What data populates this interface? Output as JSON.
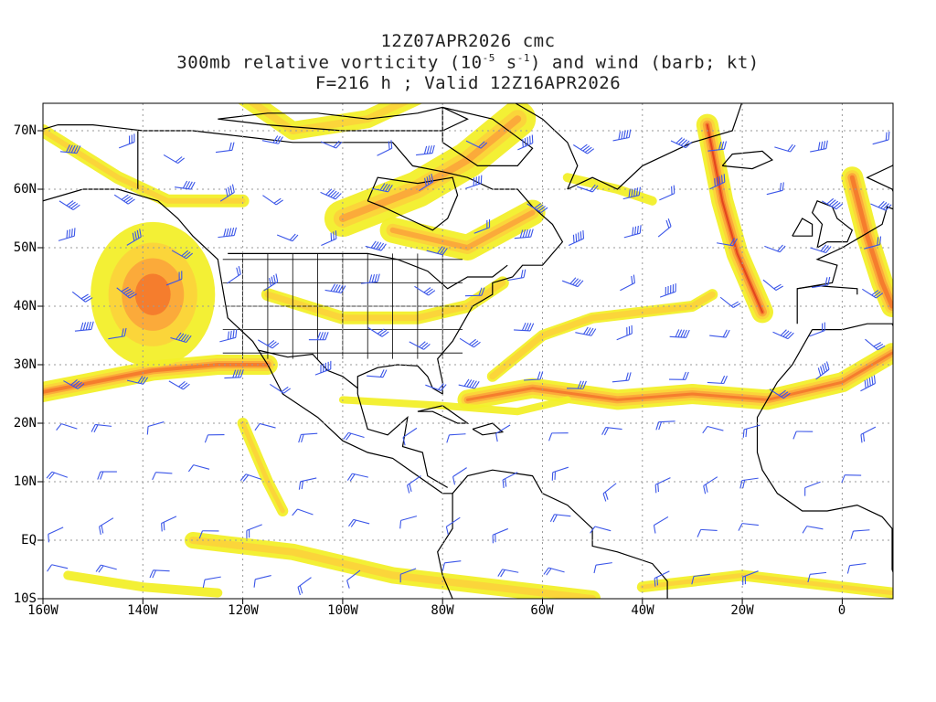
{
  "title": {
    "line1": "12Z07APR2026 cmc",
    "line2_prefix": "300mb relative vorticity (10",
    "line2_exp1": "-5",
    "line2_mid": " s",
    "line2_exp2": "-1",
    "line2_suffix": ") and wind (barb; kt)",
    "line3": "F=216 h ; Valid 12Z16APR2026"
  },
  "lat_labels": [
    "70N",
    "60N",
    "50N",
    "40N",
    "30N",
    "20N",
    "10N",
    "EQ",
    "10S"
  ],
  "lon_labels": [
    "160W",
    "140W",
    "120W",
    "100W",
    "80W",
    "60W",
    "40W",
    "20W",
    "0"
  ],
  "colors": {
    "vort_1": "#f2ef2a",
    "vort_2": "#fbd33b",
    "vort_3": "#fba83a",
    "vort_4": "#f47a2c",
    "vort_5": "#e2431e",
    "barbs": "#3b56e8",
    "coast": "#000000",
    "grid": "#9a9a9a"
  }
}
